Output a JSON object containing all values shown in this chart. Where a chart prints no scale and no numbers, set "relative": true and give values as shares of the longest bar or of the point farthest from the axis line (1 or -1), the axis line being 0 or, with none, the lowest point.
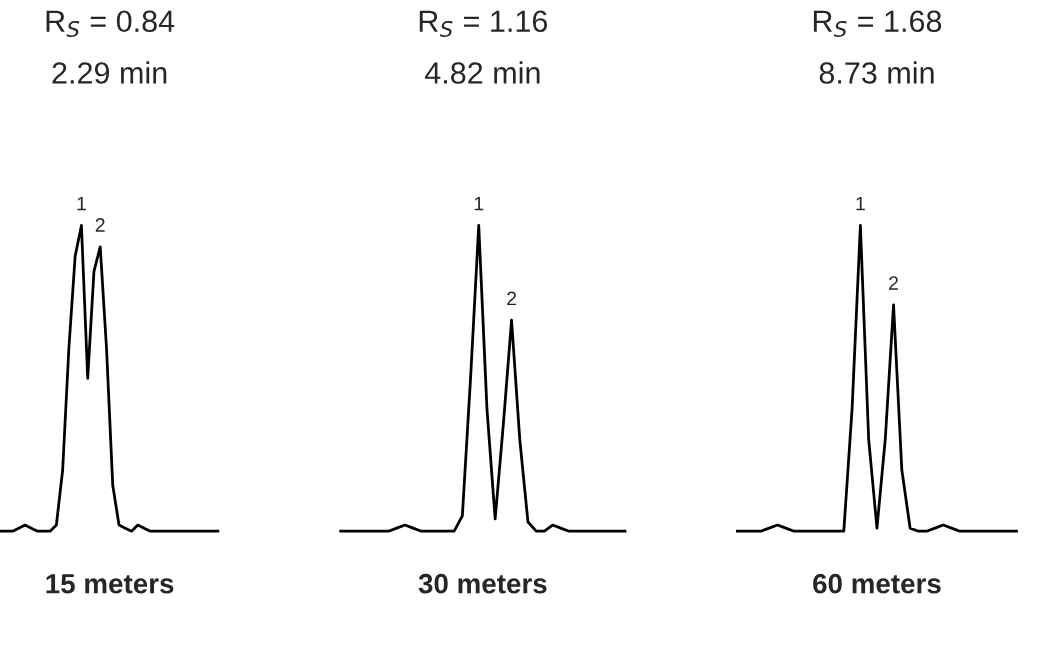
{
  "chart_data": [
    {
      "type": "line",
      "relative": true,
      "title": "R$_{S}$ = 0.84",
      "subtitle": "2.29 min",
      "xlabel": "15 meters",
      "tick_labels": false,
      "line_style": "solid",
      "categories": [
        null,
        null,
        null,
        null,
        null,
        null,
        null,
        null,
        null,
        null,
        null,
        null,
        null,
        null,
        null,
        null,
        null,
        null,
        null,
        null,
        null,
        null,
        null,
        null,
        null,
        null,
        null,
        null,
        null,
        null,
        null,
        null,
        null,
        null,
        null,
        null
      ],
      "series": [
        {
          "color": "#000000",
          "values": [
            0,
            0,
            0,
            0.01,
            0.02,
            0.01,
            0,
            0,
            0,
            0.02,
            0.2,
            0.6,
            0.9,
            1.0,
            0.5,
            0.85,
            0.93,
            0.6,
            0.15,
            0.02,
            0.01,
            0,
            0.02,
            0.01,
            0,
            0,
            0,
            0,
            0,
            0,
            0,
            0,
            0,
            0,
            0,
            0
          ]
        }
      ],
      "annotations": [
        {
          "text": "1",
          "y": 1.0
        },
        {
          "text": "2",
          "y": 0.93
        }
      ]
    },
    {
      "type": "line",
      "relative": true,
      "title": "R$_{S}$ = 1.16",
      "subtitle": "4.82 min",
      "xlabel": "30 meters",
      "tick_labels": false,
      "line_style": "solid",
      "categories": [
        null,
        null,
        null,
        null,
        null,
        null,
        null,
        null,
        null,
        null,
        null,
        null,
        null,
        null,
        null,
        null,
        null,
        null,
        null,
        null,
        null,
        null,
        null,
        null,
        null,
        null,
        null,
        null,
        null,
        null,
        null,
        null,
        null,
        null,
        null,
        null
      ],
      "series": [
        {
          "color": "#000000",
          "values": [
            0,
            0,
            0,
            0,
            0,
            0,
            0,
            0.01,
            0.02,
            0.01,
            0,
            0,
            0,
            0,
            0,
            0.05,
            0.5,
            1.0,
            0.4,
            0.04,
            0.35,
            0.69,
            0.3,
            0.03,
            0,
            0,
            0.02,
            0.01,
            0,
            0,
            0,
            0,
            0,
            0,
            0,
            0
          ]
        }
      ],
      "annotations": [
        {
          "text": "1",
          "y": 1.0
        },
        {
          "text": "2",
          "y": 0.69
        }
      ]
    },
    {
      "type": "line",
      "relative": true,
      "title": "R$_{S}$ = 1.68",
      "subtitle": "8.73 min",
      "xlabel": "60 meters",
      "tick_labels": false,
      "line_style": "solid",
      "categories": [
        null,
        null,
        null,
        null,
        null,
        null,
        null,
        null,
        null,
        null,
        null,
        null,
        null,
        null,
        null,
        null,
        null,
        null,
        null,
        null,
        null,
        null,
        null,
        null,
        null,
        null,
        null,
        null,
        null,
        null,
        null,
        null,
        null,
        null,
        null
      ],
      "series": [
        {
          "color": "#000000",
          "values": [
            0,
            0,
            0,
            0,
            0.01,
            0.02,
            0.01,
            0,
            0,
            0,
            0,
            0,
            0,
            0,
            0.4,
            1.0,
            0.3,
            0.01,
            0.3,
            0.74,
            0.2,
            0.01,
            0,
            0,
            0.01,
            0.02,
            0.01,
            0,
            0,
            0,
            0,
            0,
            0,
            0,
            0
          ]
        }
      ],
      "annotations": [
        {
          "text": "1",
          "y": 1.0
        },
        {
          "text": "2",
          "y": 0.74
        }
      ]
    }
  ]
}
